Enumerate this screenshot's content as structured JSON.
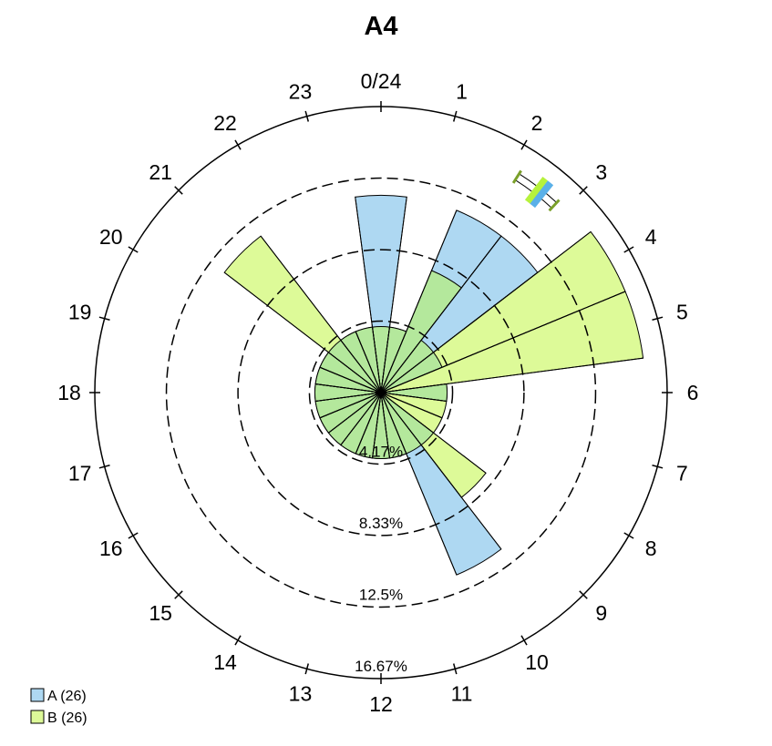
{
  "chart_data": {
    "type": "polar-rose",
    "title": "A4",
    "hour_labels": [
      "0/24",
      "1",
      "2",
      "3",
      "4",
      "5",
      "6",
      "7",
      "8",
      "9",
      "10",
      "11",
      "12",
      "13",
      "14",
      "15",
      "16",
      "17",
      "18",
      "19",
      "20",
      "21",
      "22",
      "23"
    ],
    "ring_labels": [
      "4.17%",
      "8.33%",
      "12.5%",
      "16.67%"
    ],
    "rings": [
      4.17,
      8.33,
      12.5,
      16.67
    ],
    "rmax": 16.67,
    "series": [
      {
        "name": "A (26)",
        "color": "#aed8f2",
        "values": [
          11.5,
          3.85,
          11.5,
          11.5,
          3.85,
          0,
          3.85,
          0,
          0,
          3.85,
          11.5,
          3.85,
          3.85,
          3.85,
          3.85,
          3.85,
          3.85,
          3.85,
          3.85,
          3.85,
          3.85,
          3.85,
          3.85,
          3.85
        ]
      },
      {
        "name": "B (26)",
        "color": "#ddfa98",
        "values": [
          3.85,
          3.85,
          7.7,
          3.85,
          15.4,
          15.4,
          3.85,
          3.85,
          3.85,
          7.7,
          3.85,
          3.85,
          3.85,
          3.85,
          3.85,
          3.85,
          3.85,
          3.85,
          3.85,
          3.85,
          3.85,
          11.5,
          3.85,
          3.85
        ]
      }
    ],
    "overlap_color": "#b4e89c",
    "mean_marker": {
      "series_a_hour": 2.55,
      "series_b_hour": 2.5
    },
    "legend_position": "bottom-left"
  }
}
